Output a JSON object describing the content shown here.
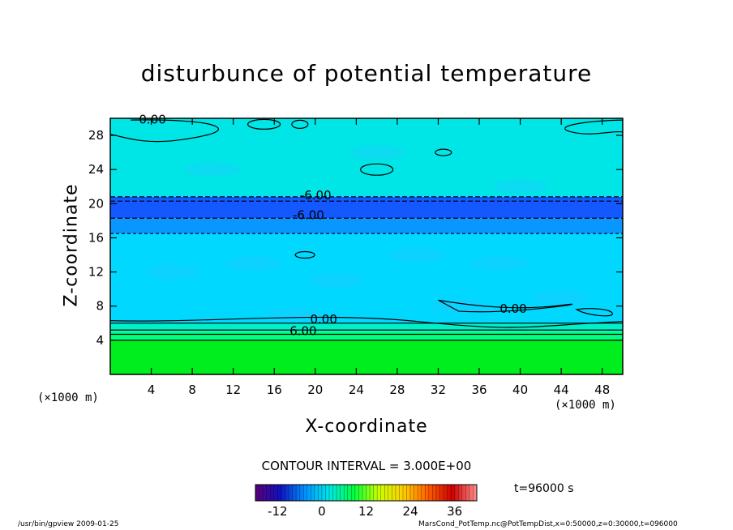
{
  "chart_data": {
    "type": "heatmap",
    "title": "disturbunce of potential temperature",
    "xlabel": "X-coordinate",
    "ylabel": "Z-coordinate",
    "x_unit": "(×1000 m)",
    "xlim": [
      0,
      50
    ],
    "ylim": [
      0,
      30
    ],
    "x_ticks": [
      4,
      8,
      12,
      16,
      20,
      24,
      28,
      32,
      36,
      40,
      44,
      48
    ],
    "y_ticks": [
      4,
      8,
      12,
      16,
      20,
      24,
      28
    ],
    "contour_interval": "CONTOUR INTERVAL = 3.000E+00",
    "contour_labels": [
      "0.00",
      "-6.00",
      "-6.00",
      "0.00",
      "6.00",
      "0.00"
    ],
    "colorbar": {
      "ticks": [
        -12,
        0,
        12,
        24,
        36
      ],
      "range": [
        -18,
        42
      ],
      "colors": [
        "#5a0078",
        "#1010c0",
        "#0090ff",
        "#00e6e6",
        "#00ff40",
        "#c8ff00",
        "#ffd000",
        "#ff6000",
        "#d00000",
        "#ff9090"
      ]
    },
    "layers": [
      {
        "z": [
          0,
          4
        ],
        "value": 12,
        "color": "#00ee1e"
      },
      {
        "z": [
          4,
          5
        ],
        "value": 9,
        "color": "#00ff80"
      },
      {
        "z": [
          5,
          6
        ],
        "value": 6,
        "color": "#00f0c8"
      },
      {
        "z": [
          6,
          16.5
        ],
        "value": 3,
        "color": "#00d8ff"
      },
      {
        "z": [
          16.5,
          18.3
        ],
        "value": -3,
        "color": "#0a96ff"
      },
      {
        "z": [
          18.3,
          20.8
        ],
        "value": -9,
        "color": "#1458ff"
      },
      {
        "z": [
          20.8,
          30
        ],
        "value": 0,
        "color": "#00e6e6"
      }
    ],
    "time_label": "t=96000 s"
  },
  "footer": {
    "left": "/usr/bin/gpview   2009-01-25",
    "right": "MarsCond_PotTemp.nc@PotTempDist,x=0:50000,z=0:30000,t=096000"
  }
}
